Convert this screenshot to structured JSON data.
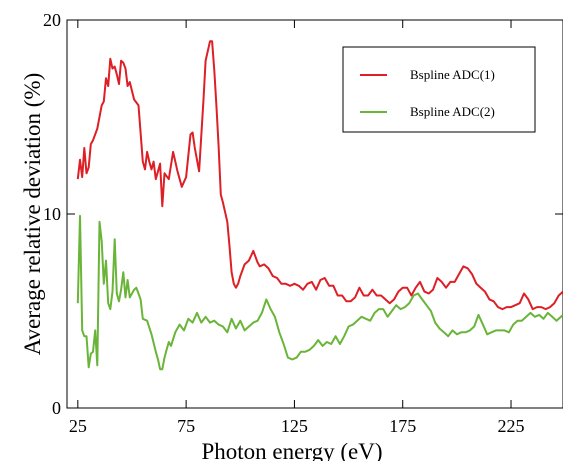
{
  "chart_data": {
    "type": "line",
    "title": "",
    "xlabel": "Photon energy (eV)",
    "ylabel": "Average relative deviation (%)",
    "xlim": [
      20,
      249
    ],
    "ylim": [
      0,
      20
    ],
    "xticks": [
      25,
      75,
      125,
      175,
      225
    ],
    "yticks": [
      0,
      10,
      20
    ],
    "grid": false,
    "legend_position": "top-right",
    "series": [
      {
        "name": "Bspline ADC(1)",
        "color": "#dd1f26",
        "x": [
          25.0,
          26.0,
          27.0,
          28.0,
          29.0,
          30.0,
          31.0,
          32.0,
          34.0,
          36.0,
          37.0,
          38.0,
          39.0,
          40.0,
          41.0,
          42.0,
          43.0,
          44.0,
          45.0,
          46.0,
          47.0,
          48.0,
          49.0,
          51.0,
          53.0,
          55.0,
          56.0,
          57.0,
          58.0,
          59.0,
          60.0,
          61.0,
          62.0,
          63.0,
          64.0,
          65.0,
          67.0,
          69.0,
          71.0,
          73.0,
          75.0,
          77.0,
          78.0,
          79.0,
          81.0,
          83.0,
          84.0,
          86.0,
          87.0,
          88.0,
          89.0,
          90.0,
          91.0,
          92.0,
          94.0,
          95.0,
          96.0,
          97.0,
          98.0,
          99.0,
          100.0,
          102.0,
          104.0,
          106.0,
          108.0,
          109.0,
          111.0,
          113.0,
          115.0,
          117.0,
          119.0,
          121.0,
          123.0,
          125.0,
          127.0,
          129.0,
          131.0,
          133.0,
          135.0,
          137.0,
          139.0,
          141.0,
          143.0,
          145.0,
          147.0,
          149.0,
          151.0,
          153.0,
          155.0,
          157.0,
          159.0,
          161.0,
          163.0,
          165.0,
          167.0,
          169.0,
          171.0,
          173.0,
          175.0,
          177.0,
          179.0,
          181.0,
          183.0,
          185.0,
          187.0,
          189.0,
          191.0,
          193.0,
          195.0,
          197.0,
          199.0,
          201.0,
          203.0,
          205.0,
          207.0,
          209.0,
          211.0,
          213.0,
          215.0,
          217.0,
          219.0,
          221.0,
          223.0,
          225.0,
          227.0,
          229.0,
          231.0,
          233.0,
          235.0,
          237.0,
          239.0,
          241.0,
          243.0,
          245.0,
          247.0,
          249.0
        ],
        "y": [
          11.8,
          12.8,
          11.9,
          13.4,
          12.1,
          12.4,
          13.6,
          13.8,
          14.4,
          15.6,
          15.8,
          17.0,
          16.6,
          18.0,
          17.5,
          17.6,
          17.2,
          16.7,
          17.9,
          17.8,
          17.5,
          16.6,
          16.8,
          15.9,
          15.6,
          12.7,
          12.3,
          13.2,
          12.7,
          12.3,
          12.7,
          11.8,
          12.2,
          12.6,
          10.4,
          12.1,
          11.8,
          13.2,
          12.2,
          11.4,
          11.9,
          14.1,
          14.2,
          13.4,
          12.2,
          15.9,
          17.9,
          18.9,
          18.9,
          17.4,
          15.6,
          13.5,
          11.0,
          10.6,
          9.6,
          8.4,
          7.0,
          6.4,
          6.2,
          6.4,
          6.8,
          7.4,
          7.6,
          8.1,
          7.5,
          7.3,
          7.4,
          7.2,
          6.8,
          6.7,
          6.4,
          6.4,
          6.3,
          6.4,
          6.3,
          6.1,
          6.4,
          6.5,
          6.1,
          6.6,
          6.7,
          6.3,
          6.3,
          5.8,
          5.8,
          5.5,
          5.5,
          5.7,
          6.2,
          5.8,
          5.8,
          6.1,
          5.8,
          5.8,
          5.6,
          5.4,
          5.6,
          6.0,
          6.2,
          6.2,
          5.8,
          6.2,
          6.5,
          6.0,
          5.9,
          6.1,
          6.7,
          6.5,
          6.2,
          6.5,
          6.5,
          6.9,
          7.3,
          7.2,
          6.9,
          6.4,
          6.2,
          6.0,
          5.6,
          5.5,
          5.2,
          5.1,
          5.2,
          5.2,
          5.3,
          5.4,
          5.9,
          5.6,
          5.1,
          5.2,
          5.2,
          5.1,
          5.2,
          5.4,
          5.8,
          6.0
        ],
        "label_in_chart": "Bspline ADC(1)"
      },
      {
        "name": "Bspline ADC(2)",
        "color": "#6ab539",
        "x": [
          25.0,
          26.0,
          27.0,
          28.0,
          29.0,
          30.0,
          31.0,
          32.0,
          33.0,
          34.0,
          35.0,
          36.0,
          37.0,
          38.0,
          39.0,
          40.0,
          41.0,
          42.0,
          43.0,
          44.0,
          45.0,
          46.0,
          47.0,
          48.0,
          49.0,
          50.0,
          51.0,
          52.0,
          53.0,
          54.0,
          55.0,
          57.0,
          59.0,
          61.0,
          62.0,
          63.0,
          64.0,
          65.0,
          66.0,
          67.0,
          68.0,
          70.0,
          72.0,
          74.0,
          76.0,
          78.0,
          80.0,
          82.0,
          84.0,
          86.0,
          88.0,
          90.0,
          92.0,
          94.0,
          96.0,
          98.0,
          100.0,
          102.0,
          104.0,
          106.0,
          108.0,
          110.0,
          112.0,
          114.0,
          116.0,
          118.0,
          120.0,
          122.0,
          124.0,
          126.0,
          128.0,
          130.0,
          132.0,
          134.0,
          136.0,
          138.0,
          140.0,
          142.0,
          144.0,
          146.0,
          148.0,
          150.0,
          152.0,
          154.0,
          156.0,
          158.0,
          160.0,
          162.0,
          164.0,
          166.0,
          168.0,
          170.0,
          172.0,
          174.0,
          176.0,
          178.0,
          180.0,
          182.0,
          184.0,
          186.0,
          188.0,
          190.0,
          192.0,
          194.0,
          196.0,
          198.0,
          200.0,
          202.0,
          204.0,
          206.0,
          208.0,
          210.0,
          212.0,
          214.0,
          216.0,
          218.0,
          220.0,
          222.0,
          224.0,
          226.0,
          228.0,
          230.0,
          232.0,
          234.0,
          236.0,
          238.0,
          240.0,
          242.0,
          244.0,
          246.0,
          249.0
        ],
        "y": [
          5.4,
          9.9,
          4.0,
          3.7,
          3.7,
          2.1,
          2.8,
          2.9,
          4.0,
          2.2,
          9.6,
          8.6,
          6.4,
          7.6,
          5.4,
          5.1,
          6.0,
          8.7,
          5.9,
          5.5,
          6.1,
          7.0,
          5.7,
          6.6,
          5.7,
          5.9,
          6.1,
          6.2,
          5.9,
          5.6,
          4.6,
          4.5,
          3.8,
          2.9,
          2.5,
          2.0,
          2.0,
          2.6,
          3.0,
          3.4,
          3.2,
          3.9,
          4.3,
          4.0,
          4.6,
          4.4,
          4.9,
          4.4,
          4.7,
          4.4,
          4.5,
          4.3,
          4.2,
          3.9,
          4.6,
          4.1,
          4.5,
          4.0,
          4.2,
          4.4,
          4.5,
          4.9,
          5.6,
          5.1,
          4.7,
          3.9,
          3.3,
          2.6,
          2.5,
          2.6,
          2.9,
          2.9,
          3.0,
          3.2,
          3.5,
          3.2,
          3.4,
          3.3,
          3.7,
          3.3,
          3.7,
          4.2,
          4.3,
          4.5,
          4.7,
          4.6,
          4.5,
          4.9,
          5.1,
          5.1,
          4.7,
          5.0,
          5.3,
          5.1,
          5.2,
          5.4,
          5.8,
          5.9,
          5.6,
          5.3,
          5.0,
          4.4,
          4.1,
          3.9,
          3.7,
          4.0,
          3.8,
          3.9,
          3.9,
          4.0,
          4.2,
          4.8,
          4.3,
          3.8,
          3.9,
          4.0,
          4.0,
          4.0,
          3.9,
          4.3,
          4.5,
          4.5,
          4.7,
          4.9,
          4.7,
          4.8,
          4.6,
          4.9,
          4.7,
          4.5,
          4.8
        ],
        "label_in_chart": "Bspline ADC(2)"
      }
    ]
  }
}
